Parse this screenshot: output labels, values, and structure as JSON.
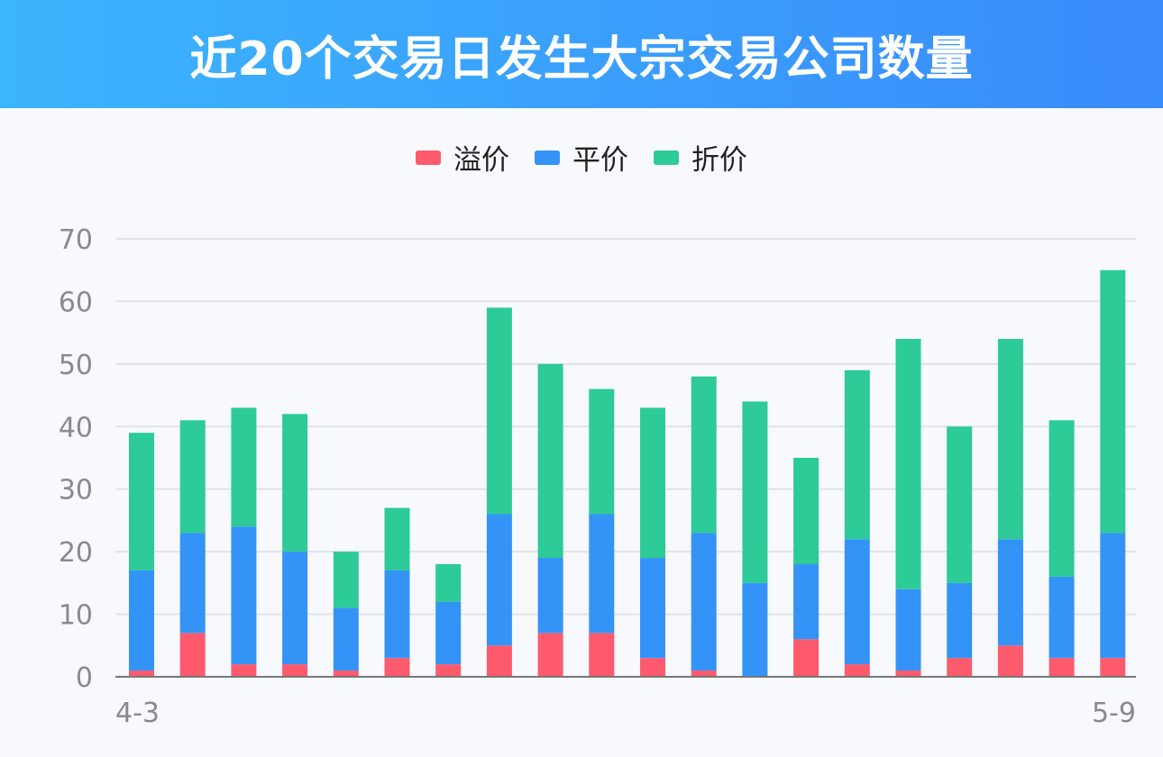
{
  "title": "近20个交易日发生大宗交易公司数量",
  "colors": {
    "premium": "#fd5a6e",
    "flat": "#3493f7",
    "discount": "#2ccb97",
    "grid": "#dfe3ea",
    "axis": "#777777"
  },
  "chart_data": {
    "type": "bar",
    "stacked": true,
    "categories": [
      "4-3",
      "",
      "",
      "",
      "",
      "",
      "",
      "",
      "",
      "",
      "",
      "",
      "",
      "",
      "",
      "",
      "",
      "",
      "",
      "5-9"
    ],
    "x_tick_labels": [
      "4-3",
      "5-9"
    ],
    "series": [
      {
        "name": "溢价",
        "values": [
          1,
          7,
          2,
          2,
          1,
          3,
          2,
          5,
          7,
          7,
          3,
          1,
          0,
          6,
          2,
          1,
          3,
          5,
          3,
          3
        ]
      },
      {
        "name": "平价",
        "values": [
          16,
          16,
          22,
          18,
          10,
          14,
          10,
          21,
          12,
          19,
          16,
          22,
          15,
          12,
          20,
          13,
          12,
          17,
          13,
          20
        ]
      },
      {
        "name": "折价",
        "values": [
          22,
          18,
          19,
          22,
          9,
          10,
          6,
          33,
          31,
          20,
          24,
          25,
          29,
          17,
          27,
          40,
          25,
          32,
          25,
          42
        ]
      }
    ],
    "ylim": [
      0,
      70
    ],
    "yticks": [
      0,
      10,
      20,
      30,
      40,
      50,
      60,
      70
    ],
    "grid": true,
    "legend_position": "top-center"
  }
}
